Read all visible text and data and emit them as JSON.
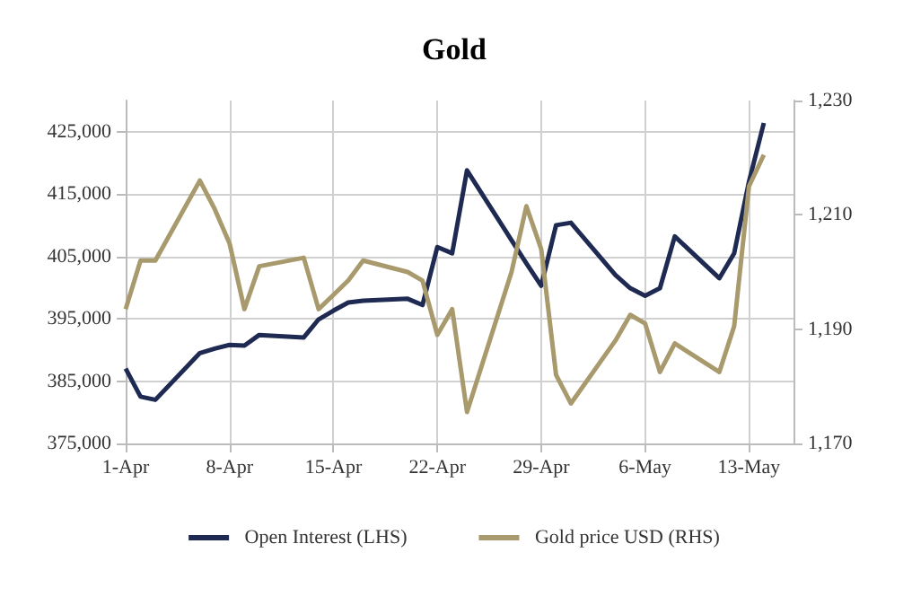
{
  "chart_data": {
    "type": "line",
    "title": "Gold",
    "x": [
      "--04-01",
      "--04-02",
      "--04-03",
      "--04-06",
      "--04-07",
      "--04-08",
      "--04-09",
      "--04-10",
      "--04-13",
      "--04-14",
      "--04-15",
      "--04-16",
      "--04-17",
      "--04-20",
      "--04-21",
      "--04-22",
      "--04-23",
      "--04-24",
      "--04-27",
      "--04-28",
      "--04-29",
      "--04-30",
      "--05-01",
      "--05-04",
      "--05-05",
      "--05-06",
      "--05-07",
      "--05-08",
      "--05-11",
      "--05-12",
      "--05-13",
      "--05-14"
    ],
    "series": [
      {
        "name": "Open Interest (LHS)",
        "color": "#1f2a52",
        "values": [
          387000,
          382500,
          382000,
          389500,
          390200,
          390800,
          390700,
          392400,
          392000,
          394900,
          396300,
          397600,
          397900,
          398200,
          397200,
          406500,
          405500,
          418800,
          407600,
          403900,
          400300,
          410000,
          410400,
          402000,
          399900,
          398700,
          399900,
          408200,
          401500,
          405500,
          417000,
          426400
        ]
      },
      {
        "name": "Gold price USD (RHS)",
        "color": "#a89a6c",
        "axis": "y2",
        "values": [
          1193.5,
          1202,
          1202,
          1216,
          1211,
          1205,
          1193.5,
          1201,
          1202.5,
          1193.5,
          1196,
          1198.5,
          1202,
          1200,
          1198.5,
          1189,
          1193.5,
          1175.5,
          1200,
          1211.5,
          1204,
          1182,
          1177,
          1188,
          1192.5,
          1191,
          1182.5,
          1187.5,
          1182.5,
          1190.5,
          1215,
          1220.5
        ]
      }
    ],
    "xlim": [
      "--04-01",
      "--05-16"
    ],
    "xticks": [
      {
        "value": "--04-01",
        "label": "1-Apr"
      },
      {
        "value": "--04-08",
        "label": "8-Apr"
      },
      {
        "value": "--04-15",
        "label": "15-Apr"
      },
      {
        "value": "--04-22",
        "label": "22-Apr"
      },
      {
        "value": "--04-29",
        "label": "29-Apr"
      },
      {
        "value": "--05-06",
        "label": "6-May"
      },
      {
        "value": "--05-13",
        "label": "13-May"
      }
    ],
    "ylim": [
      375000,
      430000
    ],
    "yticks": [
      {
        "value": 375000,
        "label": "375,000"
      },
      {
        "value": 385000,
        "label": "385,000"
      },
      {
        "value": 395000,
        "label": "395,000"
      },
      {
        "value": 405000,
        "label": "405,000"
      },
      {
        "value": 415000,
        "label": "415,000"
      },
      {
        "value": 425000,
        "label": "425,000"
      }
    ],
    "y2lim": [
      1170,
      1230
    ],
    "y2ticks": [
      {
        "value": 1170,
        "label": "1,170"
      },
      {
        "value": 1190,
        "label": "1,190"
      },
      {
        "value": 1210,
        "label": "1,210"
      },
      {
        "value": 1230,
        "label": "1,230"
      }
    ],
    "grid": true,
    "legend": "bottom",
    "marker": "none",
    "line_style": "solid"
  }
}
